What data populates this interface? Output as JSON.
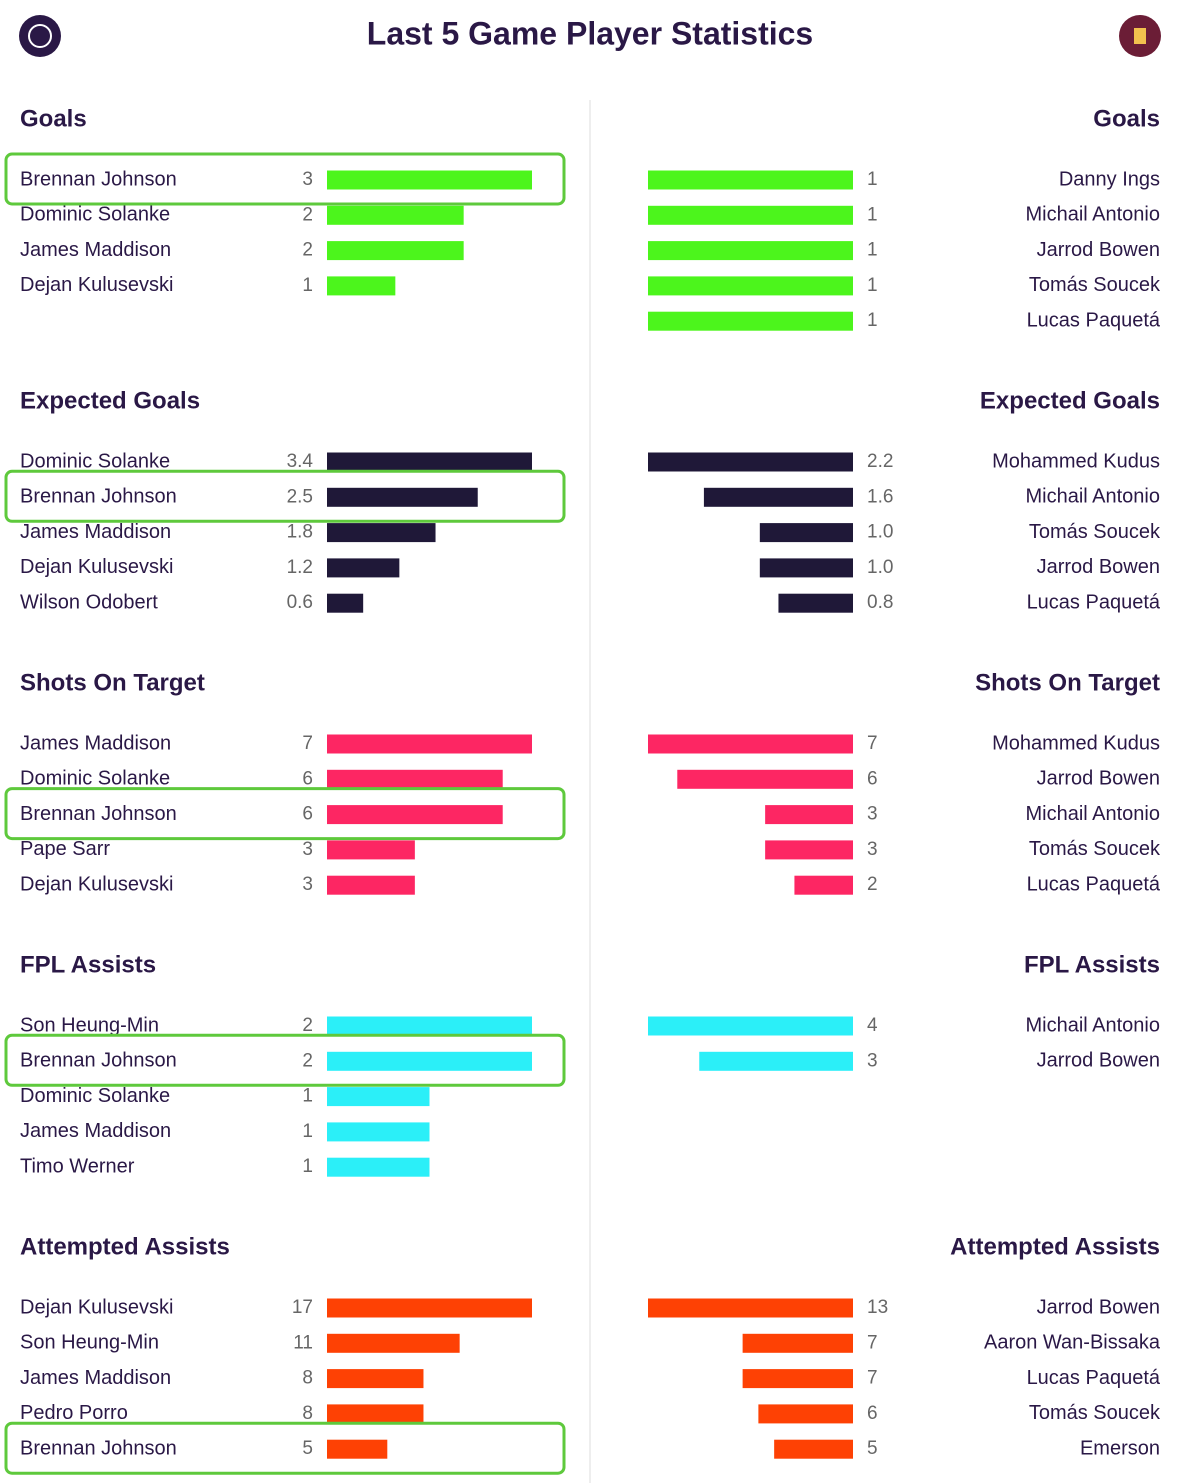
{
  "title": "Last 5 Game Player Statistics",
  "chart_data": [
    {
      "type": "bar",
      "side": "left",
      "title": "Goals",
      "categories": [
        "Brennan Johnson",
        "Dominic Solanke",
        "James Maddison",
        "Dejan Kulusevski"
      ],
      "values": [
        3,
        2,
        2,
        1
      ],
      "xlim": [
        0,
        3
      ],
      "color": "#4cf51c",
      "highlight": 0
    },
    {
      "type": "bar",
      "side": "right",
      "title": "Goals",
      "categories": [
        "Danny Ings",
        "Michail Antonio",
        "Jarrod Bowen",
        "Tomás Soucek",
        "Lucas Paquetá"
      ],
      "values": [
        1,
        1,
        1,
        1,
        1
      ],
      "xlim": [
        0,
        1
      ],
      "color": "#4cf51c"
    },
    {
      "type": "bar",
      "side": "left",
      "title": "Expected Goals",
      "categories": [
        "Dominic Solanke",
        "Brennan Johnson",
        "James Maddison",
        "Dejan Kulusevski",
        "Wilson Odobert"
      ],
      "values": [
        3.4,
        2.5,
        1.8,
        1.2,
        0.6
      ],
      "xlim": [
        0,
        3.4
      ],
      "color": "#1f1838",
      "highlight": 1
    },
    {
      "type": "bar",
      "side": "right",
      "title": "Expected Goals",
      "categories": [
        "Mohammed Kudus",
        "Michail Antonio",
        "Tomás Soucek",
        "Jarrod Bowen",
        "Lucas Paquetá"
      ],
      "values": [
        2.2,
        1.6,
        1.0,
        1.0,
        0.8
      ],
      "value_labels": [
        "2.2",
        "1.6",
        "1.0",
        "1.0",
        "0.8"
      ],
      "xlim": [
        0,
        2.2
      ],
      "color": "#1f1838"
    },
    {
      "type": "bar",
      "side": "left",
      "title": "Shots On Target",
      "categories": [
        "James Maddison",
        "Dominic Solanke",
        "Brennan Johnson",
        "Pape Sarr",
        "Dejan Kulusevski"
      ],
      "values": [
        7,
        6,
        6,
        3,
        3
      ],
      "xlim": [
        0,
        7
      ],
      "color": "#fd2663",
      "highlight": 2
    },
    {
      "type": "bar",
      "side": "right",
      "title": "Shots On Target",
      "categories": [
        "Mohammed Kudus",
        "Jarrod Bowen",
        "Michail Antonio",
        "Tomás Soucek",
        "Lucas Paquetá"
      ],
      "values": [
        7,
        6,
        3,
        3,
        2
      ],
      "xlim": [
        0,
        7
      ],
      "color": "#fd2663"
    },
    {
      "type": "bar",
      "side": "left",
      "title": "FPL Assists",
      "categories": [
        "Son Heung-Min",
        "Brennan Johnson",
        "Dominic Solanke",
        "James Maddison",
        "Timo Werner"
      ],
      "values": [
        2,
        2,
        1,
        1,
        1
      ],
      "xlim": [
        0,
        2
      ],
      "color": "#2befF8",
      "highlight": 1
    },
    {
      "type": "bar",
      "side": "right",
      "title": "FPL Assists",
      "categories": [
        "Michail Antonio",
        "Jarrod Bowen"
      ],
      "values": [
        4,
        3
      ],
      "xlim": [
        0,
        4
      ],
      "color": "#2beff8"
    },
    {
      "type": "bar",
      "side": "left",
      "title": "Attempted Assists",
      "categories": [
        "Dejan Kulusevski",
        "Son Heung-Min",
        "James Maddison",
        "Pedro Porro",
        "Brennan Johnson"
      ],
      "values": [
        17,
        11,
        8,
        8,
        5
      ],
      "xlim": [
        0,
        17
      ],
      "color": "#fe4104",
      "highlight": 4
    },
    {
      "type": "bar",
      "side": "right",
      "title": "Attempted Assists",
      "categories": [
        "Jarrod Bowen",
        "Aaron Wan-Bissaka",
        "Lucas Paquetá",
        "Tomás Soucek",
        "Emerson"
      ],
      "values": [
        13,
        7,
        7,
        6,
        5
      ],
      "xlim": [
        0,
        13
      ],
      "color": "#fe4104"
    }
  ]
}
